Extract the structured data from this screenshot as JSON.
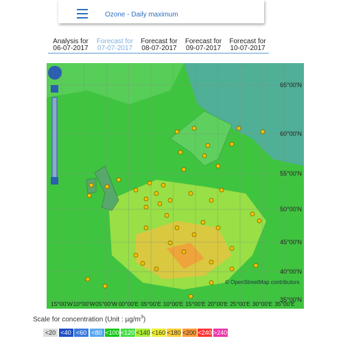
{
  "header": {
    "title": "Ozone - Daily maximum"
  },
  "tabs": [
    {
      "line1": "Analysis for",
      "line2": "06-07-2017"
    },
    {
      "line1": "Forecast for",
      "line2": "07-07-2017"
    },
    {
      "line1": "Forecast for",
      "line2": "08-07-2017"
    },
    {
      "line1": "Forecast for",
      "line2": "09-07-2017"
    },
    {
      "line1": "Forecast for",
      "line2": "10-07-2017"
    }
  ],
  "map": {
    "lat_labels": [
      "65°00'N",
      "60°00'N",
      "55°00'N",
      "50°00'N",
      "45°00'N",
      "40°00'N",
      "35°00'N"
    ],
    "lon_labels": [
      "15°00'W",
      "10°00'W",
      "05°00'W",
      "00°00'E",
      "05°00'E",
      "10°00'E",
      "15°00'E",
      "20°00'E",
      "25°00'E",
      "30°00'E",
      "35°00'E"
    ],
    "attribution": "© OpenStreetMap contributors"
  },
  "legend": {
    "title": "Scale for concentration (Unit :  µg/m",
    "title_sup": "3",
    "title_end": ")",
    "items": [
      {
        "label": "<20",
        "color": "#dddddd"
      },
      {
        "label": "<40",
        "color": "#1f4fc4"
      },
      {
        "label": "<60",
        "color": "#3a78dd"
      },
      {
        "label": "<80",
        "color": "#5aa6ee"
      },
      {
        "label": "<100",
        "color": "#14c814"
      },
      {
        "label": "<120",
        "color": "#44dd44"
      },
      {
        "label": "<140",
        "color": "#aaee33"
      },
      {
        "label": "<160",
        "color": "#eeee33"
      },
      {
        "label": "<180",
        "color": "#ffcc33"
      },
      {
        "label": "<200",
        "color": "#ff9933"
      },
      {
        "label": "<240",
        "color": "#ff3333"
      },
      {
        "label": ">240",
        "color": "#ee33aa"
      }
    ]
  }
}
